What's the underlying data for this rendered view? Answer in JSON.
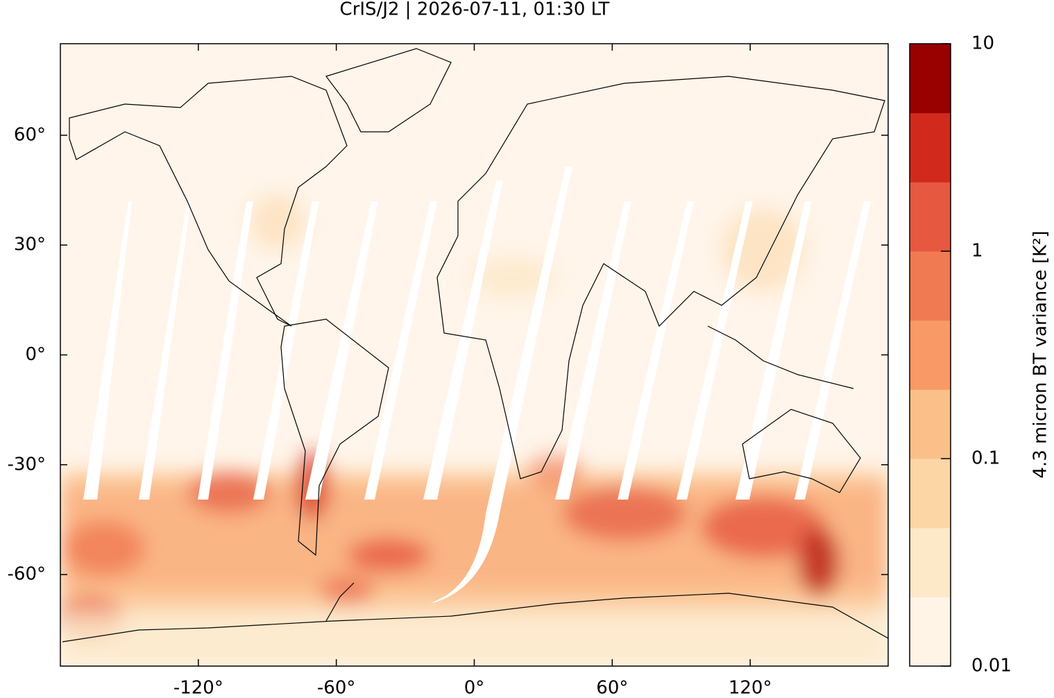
{
  "chart_data": {
    "type": "map",
    "title": "CrIS/J2 | 2026-07-11, 01:30 LT",
    "xlim": [
      -180,
      180
    ],
    "ylim": [
      -85,
      85
    ],
    "xticks": [
      {
        "value": -120,
        "label": "-120°"
      },
      {
        "value": -60,
        "label": "-60°"
      },
      {
        "value": 0,
        "label": "0°"
      },
      {
        "value": 60,
        "label": "60°"
      },
      {
        "value": 120,
        "label": "120°"
      }
    ],
    "yticks": [
      {
        "value": 60,
        "label": "60°"
      },
      {
        "value": 30,
        "label": "30°"
      },
      {
        "value": 0,
        "label": "0°"
      },
      {
        "value": -30,
        "label": "-30°"
      },
      {
        "value": -60,
        "label": "-60°"
      }
    ],
    "colorbar": {
      "label": "4.3 micron BT variance [K²]",
      "log": true,
      "lim": [
        0.01,
        10
      ],
      "ticks": [
        10,
        1,
        0.1,
        0.01
      ],
      "colors": [
        "#fff4e6",
        "#fde8c8",
        "#fdd6a6",
        "#fbc08a",
        "#f99a66",
        "#f07a52",
        "#e65840",
        "#d12a1c",
        "#990000"
      ]
    }
  }
}
